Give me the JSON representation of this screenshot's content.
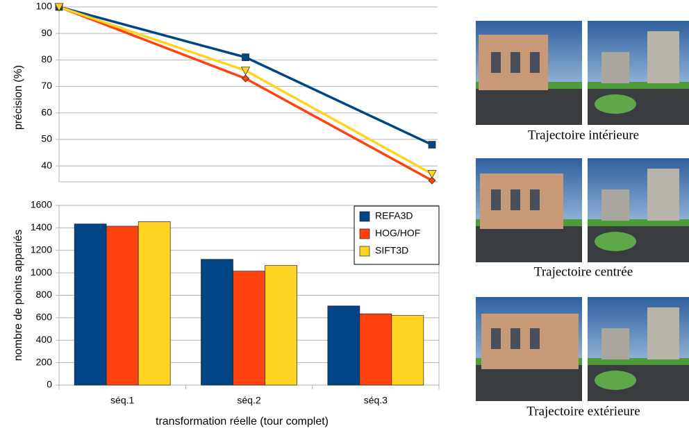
{
  "chart_data": [
    {
      "type": "line",
      "categories": [
        null,
        null,
        null
      ],
      "ylabel": "précision (%)",
      "ylim": [
        34,
        100
      ],
      "yticks": [
        40,
        50,
        60,
        70,
        80,
        90,
        100
      ],
      "grid": true,
      "series": [
        {
          "color": "#004586",
          "marker": "square",
          "values": [
            100,
            81,
            48
          ]
        },
        {
          "color": "#ff420e",
          "marker": "diamond",
          "values": [
            100,
            73,
            34.5
          ]
        },
        {
          "color": "#ffd320",
          "marker": "triangle-down",
          "values": [
            100,
            76,
            37
          ]
        }
      ]
    },
    {
      "type": "bar",
      "categories": [
        "séq.1",
        "séq.2",
        "séq.3"
      ],
      "xlabel": "transformation réelle (tour complet)",
      "ylabel": "nombre de points appariés",
      "ylim": [
        0,
        1600
      ],
      "yticks": [
        0,
        200,
        400,
        600,
        800,
        1000,
        1200,
        1400,
        1600
      ],
      "grid": true,
      "legend": "upper-right",
      "series": [
        {
          "name": "REFA3D",
          "color": "#004586",
          "values": [
            1435,
            1120,
            705
          ]
        },
        {
          "name": "HOG/HOF",
          "color": "#ff420e",
          "values": [
            1415,
            1015,
            635
          ]
        },
        {
          "name": "SIFT3D",
          "color": "#ffd320",
          "values": [
            1455,
            1065,
            620
          ]
        }
      ]
    }
  ],
  "panels": {
    "captions": [
      "Trajectoire intérieure",
      "Trajectoire centrée",
      "Trajectoire extérieure"
    ]
  }
}
